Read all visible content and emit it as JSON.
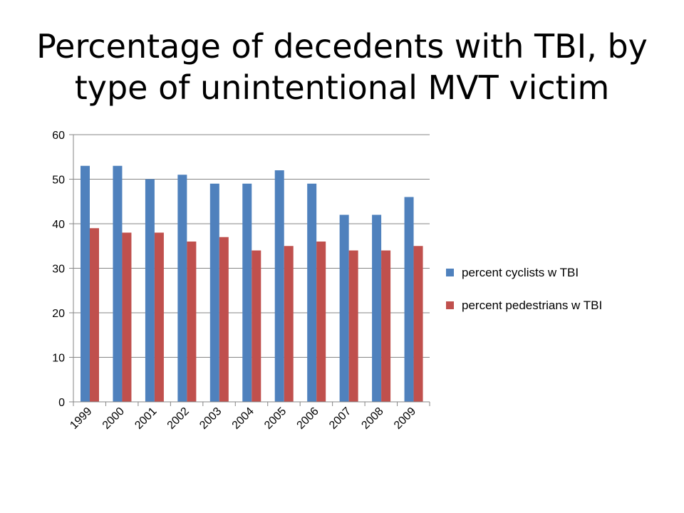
{
  "title_lines": [
    "Percentage of decedents with TBI, by",
    "type of unintentional MVT victim"
  ],
  "chart_data": {
    "type": "bar",
    "title": "Percentage of decedents with TBI, by type of unintentional MVT victim",
    "categories": [
      "1999",
      "2000",
      "2001",
      "2002",
      "2003",
      "2004",
      "2005",
      "2006",
      "2007",
      "2008",
      "2009"
    ],
    "series": [
      {
        "name": "percent cyclists w TBI",
        "color": "#4F81BD",
        "values": [
          53,
          53,
          50,
          51,
          49,
          49,
          52,
          49,
          42,
          42,
          46
        ]
      },
      {
        "name": "percent pedestrians w TBI",
        "color": "#C0504D",
        "values": [
          39,
          38,
          38,
          36,
          37,
          34,
          35,
          36,
          34,
          34,
          35
        ]
      }
    ],
    "ylim": [
      0,
      60
    ],
    "yticks": [
      0,
      10,
      20,
      30,
      40,
      50,
      60
    ],
    "grid": true,
    "legend": "right"
  }
}
